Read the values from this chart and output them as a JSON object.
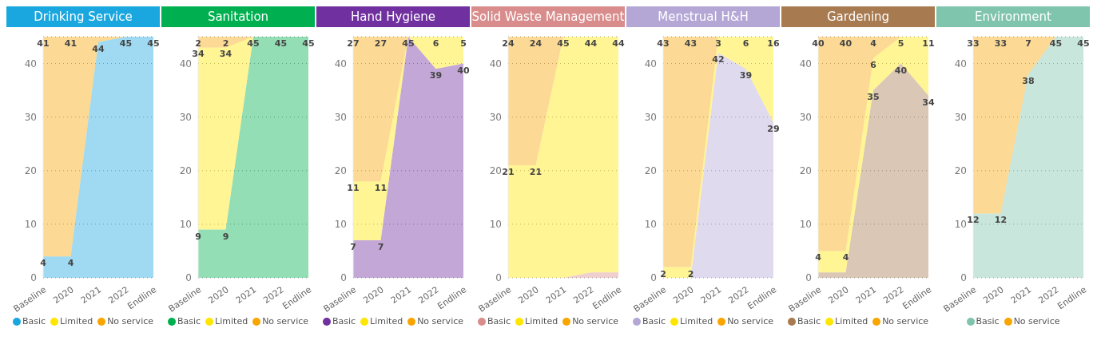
{
  "chart_data": [
    {
      "type": "area",
      "title": "Drinking Service",
      "categories": [
        "Baseline",
        "2020",
        "2021",
        "2022",
        "Endline"
      ],
      "stacked": true,
      "ylim": [
        0,
        45
      ],
      "yticks": [
        0,
        10,
        20,
        30,
        40
      ],
      "grid": "y",
      "legend": "bottom",
      "series": [
        {
          "name": "Basic",
          "color": "#1aa7df",
          "values": [
            4,
            4,
            44,
            45,
            45
          ],
          "value_labels": [
            "4",
            "4",
            "44",
            "45",
            "45"
          ]
        },
        {
          "name": "Limited",
          "color": "#ffe600",
          "values": [
            null,
            null,
            null,
            null,
            null
          ],
          "value_labels": [
            null,
            null,
            null,
            null,
            null
          ]
        },
        {
          "name": "No service",
          "color": "#f9a500",
          "values": [
            41,
            41,
            1,
            0,
            0
          ],
          "value_labels": [
            "41",
            "41",
            null,
            null,
            null
          ]
        }
      ]
    },
    {
      "type": "area",
      "title": "Sanitation",
      "categories": [
        "Baseline",
        "2020",
        "2021",
        "2022",
        "Endline"
      ],
      "stacked": true,
      "ylim": [
        0,
        45
      ],
      "yticks": [
        0,
        10,
        20,
        30,
        40
      ],
      "grid": "y",
      "legend": "bottom",
      "series": [
        {
          "name": "Basic",
          "color": "#00b050",
          "values": [
            9,
            9,
            45,
            45,
            45
          ],
          "value_labels": [
            "9",
            "9",
            "45",
            "45",
            "45"
          ]
        },
        {
          "name": "Limited",
          "color": "#ffe600",
          "values": [
            34,
            34,
            0,
            0,
            0
          ],
          "value_labels": [
            "34",
            "34",
            null,
            null,
            null
          ]
        },
        {
          "name": "No service",
          "color": "#f9a500",
          "values": [
            2,
            2,
            0,
            0,
            0
          ],
          "value_labels": [
            "2",
            "2",
            null,
            null,
            null
          ]
        }
      ]
    },
    {
      "type": "area",
      "title": "Hand Hygiene",
      "categories": [
        "Baseline",
        "2020",
        "2021",
        "2022",
        "Endline"
      ],
      "stacked": true,
      "ylim": [
        0,
        45
      ],
      "yticks": [
        0,
        10,
        20,
        30,
        40
      ],
      "grid": "y",
      "legend": "bottom",
      "series": [
        {
          "name": "Basic",
          "color": "#7030a0",
          "values": [
            7,
            7,
            45,
            39,
            40
          ],
          "value_labels": [
            "7",
            "7",
            "45",
            "39",
            "40"
          ]
        },
        {
          "name": "Limited",
          "color": "#ffe600",
          "values": [
            11,
            11,
            0,
            6,
            5
          ],
          "value_labels": [
            "11",
            "11",
            null,
            "6",
            "5"
          ]
        },
        {
          "name": "No service",
          "color": "#f9a500",
          "values": [
            27,
            27,
            0,
            0,
            0
          ],
          "value_labels": [
            "27",
            "27",
            null,
            null,
            null
          ]
        }
      ]
    },
    {
      "type": "area",
      "title": "Solid Waste Management",
      "categories": [
        "Baseline",
        "2020",
        "2021",
        "2022",
        "Endline"
      ],
      "stacked": true,
      "ylim": [
        0,
        45
      ],
      "yticks": [
        0,
        10,
        20,
        30,
        40
      ],
      "grid": "y",
      "legend": "bottom",
      "series": [
        {
          "name": "Basic",
          "color": "#d98c8c",
          "values": [
            0,
            0,
            0,
            1,
            1
          ],
          "value_labels": [
            null,
            null,
            null,
            null,
            null
          ]
        },
        {
          "name": "Limited",
          "color": "#ffe600",
          "values": [
            21,
            21,
            45,
            44,
            44
          ],
          "value_labels": [
            "21",
            "21",
            "45",
            "44",
            "44"
          ]
        },
        {
          "name": "No service",
          "color": "#f9a500",
          "values": [
            24,
            24,
            0,
            0,
            0
          ],
          "value_labels": [
            "24",
            "24",
            null,
            null,
            null
          ]
        }
      ]
    },
    {
      "type": "area",
      "title": "Menstrual H&H",
      "categories": [
        "Baseline",
        "2020",
        "2021",
        "2022",
        "Endline"
      ],
      "stacked": true,
      "ylim": [
        0,
        45
      ],
      "yticks": [
        0,
        10,
        20,
        30,
        40
      ],
      "grid": "y",
      "legend": "bottom",
      "series": [
        {
          "name": "Basic",
          "color": "#b4a7d6",
          "values": [
            0,
            0,
            42,
            39,
            29
          ],
          "value_labels": [
            null,
            null,
            "42",
            "39",
            "29"
          ]
        },
        {
          "name": "Limited",
          "color": "#ffe600",
          "values": [
            2,
            2,
            3,
            6,
            16
          ],
          "value_labels": [
            "2",
            "2",
            "3",
            "6",
            "16"
          ]
        },
        {
          "name": "No service",
          "color": "#f9a500",
          "values": [
            43,
            43,
            0,
            0,
            0
          ],
          "value_labels": [
            "43",
            "43",
            null,
            null,
            null
          ]
        }
      ]
    },
    {
      "type": "area",
      "title": "Gardening",
      "categories": [
        "Baseline",
        "2020",
        "2021",
        "2022",
        "Endline"
      ],
      "stacked": true,
      "ylim": [
        0,
        45
      ],
      "yticks": [
        0,
        10,
        20,
        30,
        40
      ],
      "grid": "y",
      "legend": "bottom",
      "series": [
        {
          "name": "Basic",
          "color": "#a87a50",
          "values": [
            1,
            1,
            35,
            40,
            34
          ],
          "value_labels": [
            null,
            null,
            "35",
            "40",
            "34"
          ]
        },
        {
          "name": "Limited",
          "color": "#ffe600",
          "values": [
            4,
            4,
            6,
            5,
            11
          ],
          "value_labels": [
            "4",
            "4",
            "6",
            "5",
            "11"
          ]
        },
        {
          "name": "No service",
          "color": "#f9a500",
          "values": [
            40,
            40,
            4,
            0,
            0
          ],
          "value_labels": [
            "40",
            "40",
            "4",
            null,
            null
          ]
        }
      ]
    },
    {
      "type": "area",
      "title": "Environment",
      "categories": [
        "Baseline",
        "2020",
        "2021",
        "2022",
        "Endline"
      ],
      "stacked": true,
      "ylim": [
        0,
        45
      ],
      "yticks": [
        0,
        10,
        20,
        30,
        40
      ],
      "grid": "y",
      "legend": "bottom",
      "series": [
        {
          "name": "Basic",
          "color": "#7fc4ac",
          "values": [
            12,
            12,
            38,
            45,
            45
          ],
          "value_labels": [
            "12",
            "12",
            "38",
            "45",
            "45"
          ]
        },
        {
          "name": "No service",
          "color": "#f9a500",
          "values": [
            33,
            33,
            7,
            0,
            0
          ],
          "value_labels": [
            "33",
            "33",
            "7",
            null,
            null
          ]
        }
      ]
    }
  ]
}
